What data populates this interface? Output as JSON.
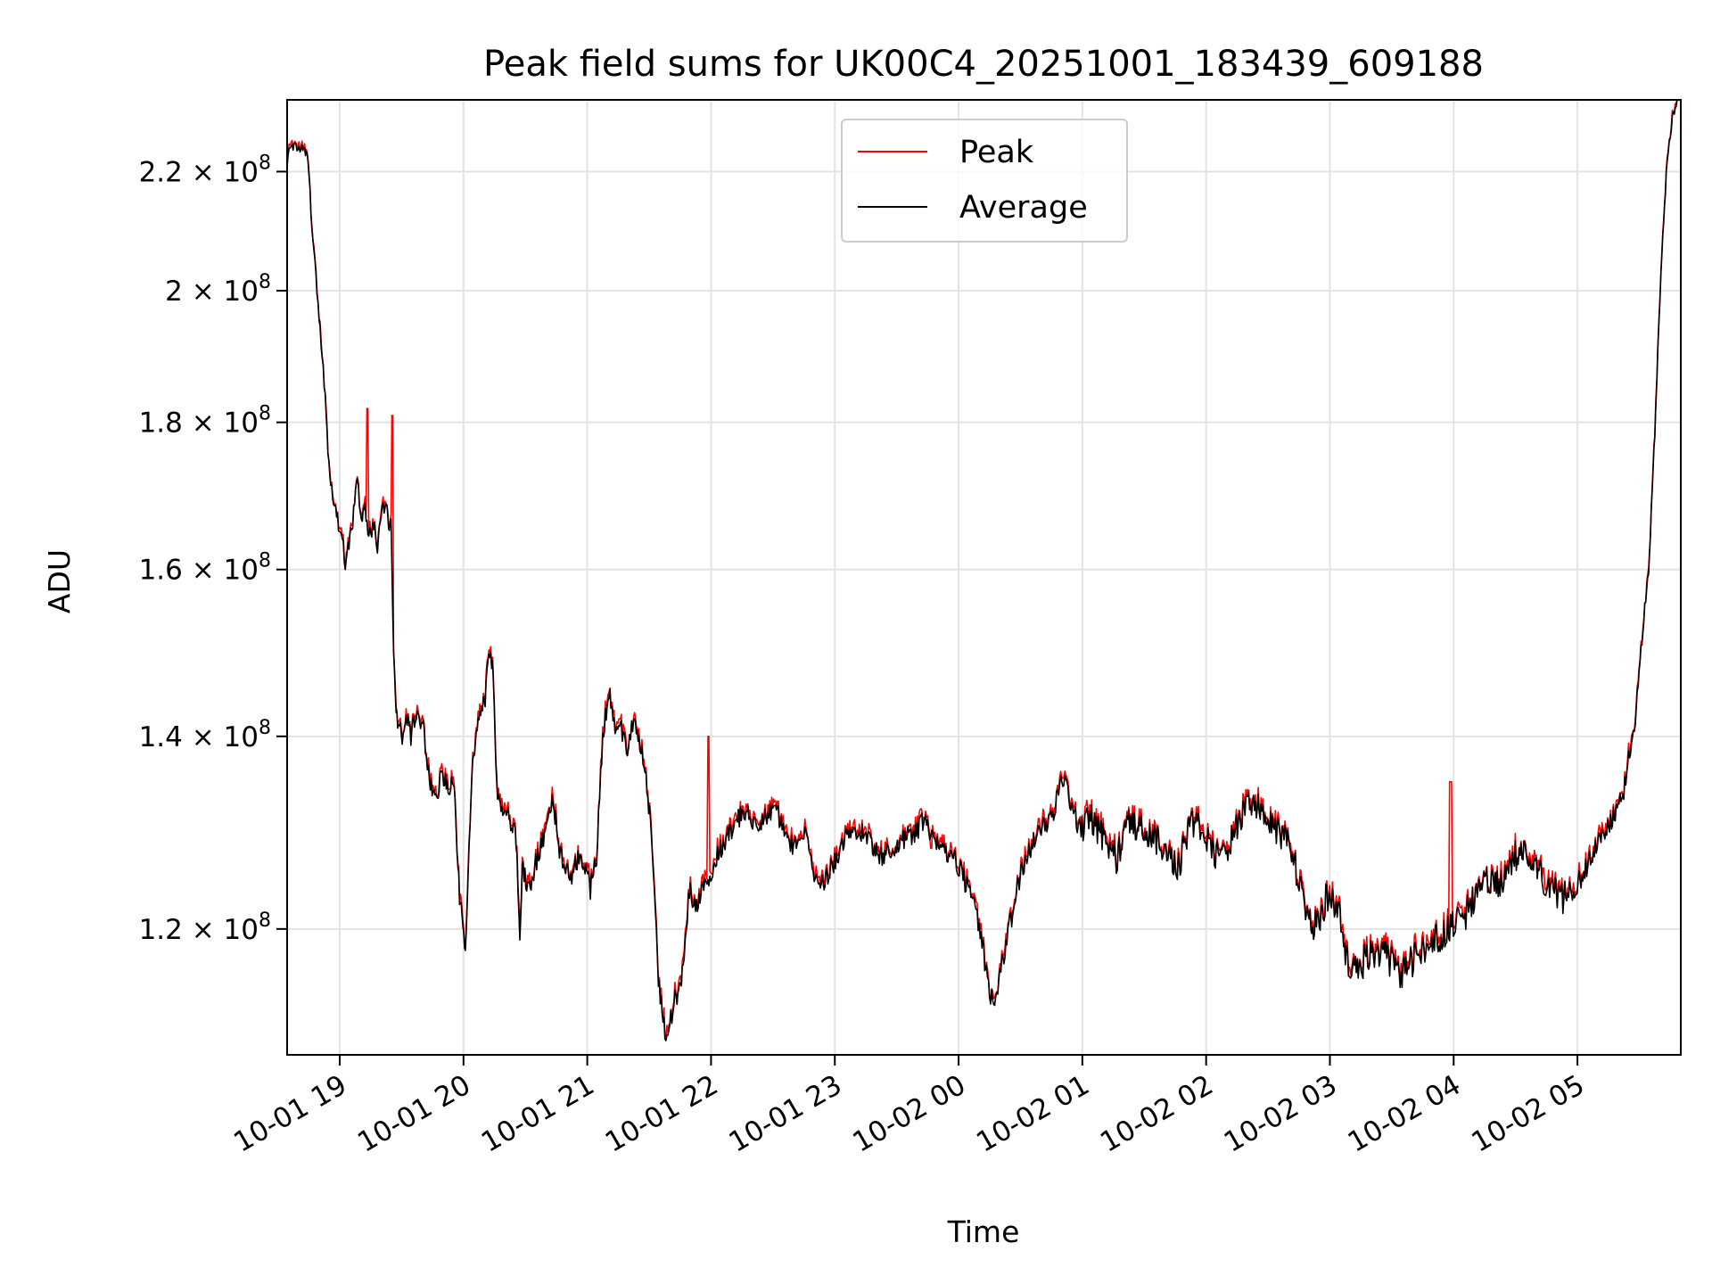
{
  "chart_data": {
    "type": "line",
    "title": "Peak field sums for UK00C4_20251001_183439_609188",
    "xlabel": "Time",
    "ylabel": "ADU",
    "grid": true,
    "legend_position": "upper-center",
    "x_tick_labels": [
      "10-01 19",
      "10-01 20",
      "10-01 21",
      "10-01 22",
      "10-01 23",
      "10-02 00",
      "10-02 01",
      "10-02 02",
      "10-02 03",
      "10-02 04",
      "10-02 05"
    ],
    "x_tick_hours": [
      0.425,
      1.425,
      2.425,
      3.425,
      4.425,
      5.425,
      6.425,
      7.425,
      8.425,
      9.425,
      10.425
    ],
    "x_range_hours": [
      0,
      11.26
    ],
    "x_unit": "hours since 10-01 18:34:39",
    "y_scale": "log",
    "y_tick_values": [
      120000000,
      140000000,
      160000000,
      180000000,
      200000000,
      220000000
    ],
    "y_tick_labels": [
      {
        "mantissa": "1.2",
        "base": "10",
        "exponent": "8"
      },
      {
        "mantissa": "1.4",
        "base": "10",
        "exponent": "8"
      },
      {
        "mantissa": "1.6",
        "base": "10",
        "exponent": "8"
      },
      {
        "mantissa": "1.8",
        "base": "10",
        "exponent": "8"
      },
      {
        "mantissa": "2",
        "base": "10",
        "exponent": "8"
      },
      {
        "mantissa": "2.2",
        "base": "10",
        "exponent": "8"
      }
    ],
    "ylim": [
      108500000,
      233000000
    ],
    "series": [
      {
        "name": "Average",
        "color": "#000000",
        "points": [
          [
            0,
            222
          ],
          [
            0.04,
            225
          ],
          [
            0.08,
            224
          ],
          [
            0.12,
            224
          ],
          [
            0.17,
            222
          ],
          [
            0.2,
            210
          ],
          [
            0.25,
            198
          ],
          [
            0.3,
            186
          ],
          [
            0.33,
            176
          ],
          [
            0.36,
            171
          ],
          [
            0.4,
            167
          ],
          [
            0.43,
            165
          ],
          [
            0.47,
            161
          ],
          [
            0.5,
            163
          ],
          [
            0.53,
            166
          ],
          [
            0.56,
            172
          ],
          [
            0.6,
            167
          ],
          [
            0.63,
            168
          ],
          [
            0.66,
            164
          ],
          [
            0.7,
            166
          ],
          [
            0.73,
            163
          ],
          [
            0.76,
            167
          ],
          [
            0.8,
            169
          ],
          [
            0.82,
            166
          ],
          [
            0.84,
            166
          ],
          [
            0.86,
            150
          ],
          [
            0.88,
            143
          ],
          [
            0.9,
            141
          ],
          [
            0.93,
            140
          ],
          [
            0.97,
            142
          ],
          [
            1.0,
            140
          ],
          [
            1.05,
            143
          ],
          [
            1.1,
            141
          ],
          [
            1.15,
            135
          ],
          [
            1.2,
            133
          ],
          [
            1.25,
            136
          ],
          [
            1.3,
            134
          ],
          [
            1.35,
            135
          ],
          [
            1.38,
            126
          ],
          [
            1.4,
            122
          ],
          [
            1.42,
            121
          ],
          [
            1.44,
            117
          ],
          [
            1.47,
            128
          ],
          [
            1.5,
            137
          ],
          [
            1.55,
            142
          ],
          [
            1.6,
            144
          ],
          [
            1.63,
            150
          ],
          [
            1.66,
            148
          ],
          [
            1.68,
            140
          ],
          [
            1.7,
            133
          ],
          [
            1.75,
            132
          ],
          [
            1.8,
            131
          ],
          [
            1.85,
            129
          ],
          [
            1.88,
            119
          ],
          [
            1.9,
            126
          ],
          [
            1.95,
            124
          ],
          [
            2.0,
            126
          ],
          [
            2.05,
            128
          ],
          [
            2.1,
            131
          ],
          [
            2.15,
            133
          ],
          [
            2.2,
            128
          ],
          [
            2.25,
            126
          ],
          [
            2.3,
            125
          ],
          [
            2.35,
            127
          ],
          [
            2.4,
            126
          ],
          [
            2.45,
            124
          ],
          [
            2.5,
            127
          ],
          [
            2.55,
            140
          ],
          [
            2.6,
            145
          ],
          [
            2.65,
            141
          ],
          [
            2.7,
            141
          ],
          [
            2.75,
            138
          ],
          [
            2.8,
            142
          ],
          [
            2.85,
            139
          ],
          [
            2.9,
            136
          ],
          [
            2.95,
            128
          ],
          [
            3.0,
            115
          ],
          [
            3.03,
            112
          ],
          [
            3.06,
            110
          ],
          [
            3.1,
            112
          ],
          [
            3.15,
            114
          ],
          [
            3.2,
            116
          ],
          [
            3.25,
            124
          ],
          [
            3.3,
            122
          ],
          [
            3.35,
            124
          ],
          [
            3.4,
            125
          ],
          [
            3.5,
            128
          ],
          [
            3.6,
            130
          ],
          [
            3.7,
            132
          ],
          [
            3.8,
            130
          ],
          [
            3.9,
            132
          ],
          [
            4.0,
            131
          ],
          [
            4.05,
            129
          ],
          [
            4.1,
            128
          ],
          [
            4.15,
            130
          ],
          [
            4.2,
            129
          ],
          [
            4.25,
            126
          ],
          [
            4.3,
            124
          ],
          [
            4.4,
            126
          ],
          [
            4.5,
            129
          ],
          [
            4.6,
            130
          ],
          [
            4.7,
            129
          ],
          [
            4.8,
            127
          ],
          [
            4.9,
            128
          ],
          [
            5.0,
            129
          ],
          [
            5.1,
            130
          ],
          [
            5.15,
            131
          ],
          [
            5.2,
            129
          ],
          [
            5.3,
            128
          ],
          [
            5.4,
            127
          ],
          [
            5.5,
            124
          ],
          [
            5.55,
            122
          ],
          [
            5.6,
            120
          ],
          [
            5.65,
            116
          ],
          [
            5.7,
            113
          ],
          [
            5.75,
            115
          ],
          [
            5.8,
            118
          ],
          [
            5.9,
            124
          ],
          [
            6.0,
            128
          ],
          [
            6.1,
            130
          ],
          [
            6.2,
            132
          ],
          [
            6.25,
            136
          ],
          [
            6.3,
            134
          ],
          [
            6.4,
            130
          ],
          [
            6.5,
            131
          ],
          [
            6.6,
            129
          ],
          [
            6.7,
            127
          ],
          [
            6.8,
            131
          ],
          [
            6.9,
            130
          ],
          [
            7.0,
            129
          ],
          [
            7.1,
            128
          ],
          [
            7.2,
            126
          ],
          [
            7.3,
            131
          ],
          [
            7.4,
            130
          ],
          [
            7.5,
            127
          ],
          [
            7.6,
            128
          ],
          [
            7.7,
            131
          ],
          [
            7.8,
            133
          ],
          [
            7.9,
            131
          ],
          [
            8.0,
            130
          ],
          [
            8.1,
            128
          ],
          [
            8.2,
            124
          ],
          [
            8.25,
            121
          ],
          [
            8.3,
            120
          ],
          [
            8.4,
            123
          ],
          [
            8.5,
            122
          ],
          [
            8.55,
            118
          ],
          [
            8.6,
            116
          ],
          [
            8.7,
            117
          ],
          [
            8.8,
            118
          ],
          [
            8.9,
            117
          ],
          [
            9.0,
            116
          ],
          [
            9.1,
            117
          ],
          [
            9.2,
            118
          ],
          [
            9.3,
            119
          ],
          [
            9.4,
            120
          ],
          [
            9.5,
            121
          ],
          [
            9.6,
            123
          ],
          [
            9.7,
            125
          ],
          [
            9.8,
            124
          ],
          [
            9.9,
            127
          ],
          [
            10.0,
            128
          ],
          [
            10.1,
            126
          ],
          [
            10.2,
            124
          ],
          [
            10.3,
            123
          ],
          [
            10.4,
            124
          ],
          [
            10.5,
            126
          ],
          [
            10.6,
            129
          ],
          [
            10.7,
            131
          ],
          [
            10.8,
            134
          ],
          [
            10.9,
            143
          ],
          [
            11.0,
            160
          ],
          [
            11.05,
            178
          ],
          [
            11.1,
            203
          ],
          [
            11.15,
            222
          ],
          [
            11.2,
            231
          ],
          [
            11.26,
            233
          ]
        ]
      },
      {
        "name": "Peak",
        "color": "#ff0000",
        "spikes": [
          [
            0.65,
            182
          ],
          [
            0.85,
            181
          ],
          [
            3.4,
            140
          ],
          [
            5.2,
            128
          ],
          [
            9.4,
            135
          ],
          [
            10.15,
            126
          ]
        ]
      }
    ]
  }
}
